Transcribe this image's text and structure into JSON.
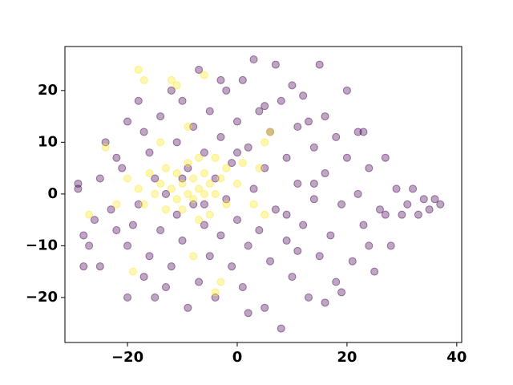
{
  "chart_data": {
    "type": "scatter",
    "xlim": [
      -31.4,
      40.9
    ],
    "ylim": [
      -28.7,
      28.5
    ],
    "xticks": [
      {
        "value": -20,
        "label": "−20"
      },
      0,
      20,
      40
    ],
    "yticks": [
      {
        "value": -20,
        "label": "−20"
      },
      {
        "value": -10,
        "label": "−10"
      },
      0,
      10,
      20
    ],
    "series": [
      {
        "color": "#440154",
        "x": [
          -29,
          -29,
          -28,
          -28,
          -27,
          -26,
          -25,
          -24,
          -23,
          -22,
          -21,
          -20,
          -20,
          -19,
          -18,
          -18,
          -17,
          -17,
          -16,
          -16,
          -15,
          -15,
          -14,
          -14,
          -13,
          -12,
          -12,
          -11,
          -11,
          -10,
          -10,
          -9,
          -9,
          -8,
          -8,
          -7,
          -7,
          -6,
          -6,
          -5,
          -5,
          -4,
          -4,
          -3,
          -3,
          -2,
          -2,
          -1,
          -1,
          0,
          0,
          1,
          1,
          2,
          2,
          3,
          3,
          4,
          4,
          5,
          5,
          6,
          6,
          7,
          7,
          8,
          8,
          9,
          9,
          10,
          11,
          11,
          12,
          12,
          13,
          14,
          14,
          15,
          15,
          16,
          16,
          17,
          18,
          18,
          19,
          20,
          20,
          21,
          22,
          22,
          23,
          24,
          25,
          26,
          27,
          28,
          29,
          30,
          31,
          32,
          33,
          34,
          35,
          36,
          37,
          -25,
          -10,
          -6,
          10,
          13,
          19,
          24,
          -20,
          2,
          -13,
          5,
          9,
          16,
          27,
          23,
          -22,
          -3,
          11,
          14,
          0
        ],
        "values": [
          2,
          1,
          -8,
          -14,
          -10,
          -5,
          3,
          10,
          -3,
          7,
          5,
          -20,
          -10,
          -6,
          18,
          -2,
          12,
          -16,
          8,
          -12,
          3,
          -20,
          15,
          -7,
          0,
          20,
          -14,
          10,
          -4,
          18,
          -9,
          5,
          -22,
          13,
          -2,
          24,
          -17,
          8,
          -6,
          16,
          -12,
          3,
          -20,
          11,
          -8,
          20,
          -1,
          6,
          -14,
          14,
          -5,
          22,
          -18,
          9,
          -10,
          26,
          1,
          16,
          -7,
          5,
          -22,
          12,
          -13,
          25,
          -3,
          18,
          -26,
          7,
          -9,
          -16,
          13,
          2,
          -6,
          19,
          -20,
          9,
          -1,
          25,
          -12,
          15,
          4,
          -8,
          11,
          -17,
          -2,
          20,
          7,
          -13,
          12,
          0,
          -6,
          5,
          -15,
          -3,
          7,
          -10,
          1,
          -4,
          -2,
          1,
          -4,
          -1,
          -3,
          -1,
          -2,
          -14,
          3,
          -2,
          21,
          14,
          -19,
          -10,
          14,
          -23,
          -18,
          17,
          -4,
          -21,
          -4,
          12,
          -7,
          22,
          -11,
          2,
          8
        ]
      },
      {
        "color": "#fde725",
        "x": [
          -18,
          -17,
          -12,
          -11,
          -6,
          -27,
          -20,
          -18,
          -17,
          -16,
          -15,
          -14,
          -13,
          -13,
          -12,
          -11,
          -11,
          -10,
          -10,
          -9,
          -9,
          -8,
          -8,
          -7,
          -7,
          -6,
          -6,
          -5,
          -5,
          -4,
          -4,
          -3,
          -2,
          -2,
          0,
          1,
          3,
          4,
          5,
          5,
          -24,
          -22,
          -14,
          -8,
          -9,
          -3,
          -4,
          -19,
          6,
          -7
        ],
        "values": [
          24,
          22,
          22,
          21,
          23,
          -4,
          3,
          1,
          -2,
          4,
          0,
          2,
          -3,
          5,
          1,
          -1,
          4,
          2,
          -3,
          0,
          6,
          -1,
          3,
          1,
          -5,
          4,
          0,
          2,
          -4,
          7,
          0,
          3,
          -2,
          5,
          2,
          6,
          -2,
          5,
          10,
          -4,
          9,
          -2,
          10,
          -12,
          13,
          -17,
          -19,
          -15,
          12,
          7
        ]
      }
    ]
  }
}
